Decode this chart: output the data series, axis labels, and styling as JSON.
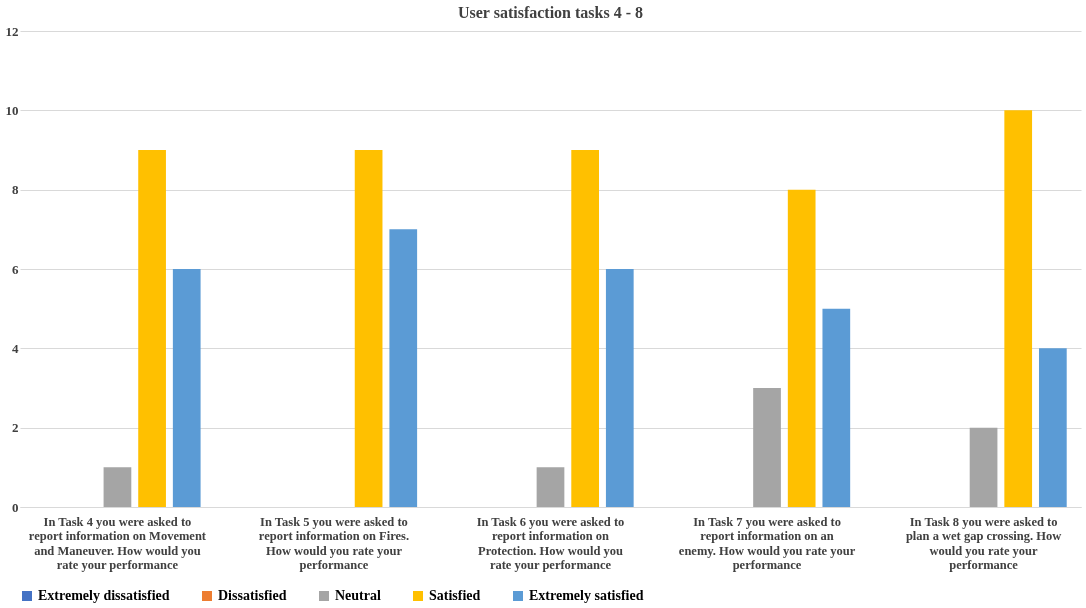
{
  "chart_data": {
    "type": "bar",
    "title": "User satisfaction tasks 4 - 8",
    "categories": [
      "In Task 4 you were asked to report information on Movement and Maneuver. How would you rate your performance",
      "In Task 5 you were asked to report information on Fires. How would you rate your performance",
      "In Task 6 you were asked to report information on Protection.  How would you rate your performance",
      "In Task 7 you were asked to report information on an enemy. How would you rate your performance",
      "In Task 8 you were asked to plan a wet gap crossing. How would you rate your performance"
    ],
    "series": [
      {
        "name": "Extremely dissatisfied",
        "color": "#4472c4",
        "values": [
          0,
          0,
          0,
          0,
          0
        ]
      },
      {
        "name": "Dissatisfied",
        "color": "#ed7d31",
        "values": [
          0,
          0,
          0,
          0,
          0
        ]
      },
      {
        "name": "Neutral",
        "color": "#a5a5a5",
        "values": [
          1,
          0,
          1,
          3,
          2
        ]
      },
      {
        "name": "Satisfied",
        "color": "#ffc000",
        "values": [
          9,
          9,
          9,
          8,
          10
        ]
      },
      {
        "name": "Extremely satisfied",
        "color": "#5b9bd5",
        "values": [
          6,
          7,
          6,
          5,
          4
        ]
      }
    ],
    "ylim": [
      0,
      12
    ],
    "yticks": [
      0,
      2,
      4,
      6,
      8,
      10,
      12
    ],
    "grid": "y",
    "legend": "bottom"
  }
}
